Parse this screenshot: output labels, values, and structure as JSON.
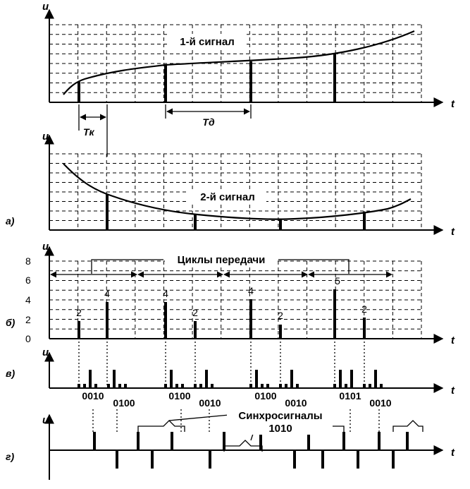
{
  "labels": {
    "u": "u",
    "t": "t",
    "panel_a": "а)",
    "panel_b": "б)",
    "panel_v": "в)",
    "panel_g": "г)",
    "tk": "Tк",
    "td": "Tд",
    "signal1": "1-й сигнал",
    "signal2": "2-й сигнал",
    "cycles": "Циклы передачи",
    "sync": "Синхросигналы",
    "sync_code": "1010"
  },
  "y_ticks": [
    "8",
    "6",
    "4",
    "2",
    "0"
  ],
  "sample_values": [
    "2",
    "4",
    "4",
    "2",
    "4",
    "2",
    "5",
    "2"
  ],
  "codes": [
    "0010",
    "0100",
    "0100",
    "0010",
    "0100",
    "0010",
    "0101",
    "0010"
  ]
}
